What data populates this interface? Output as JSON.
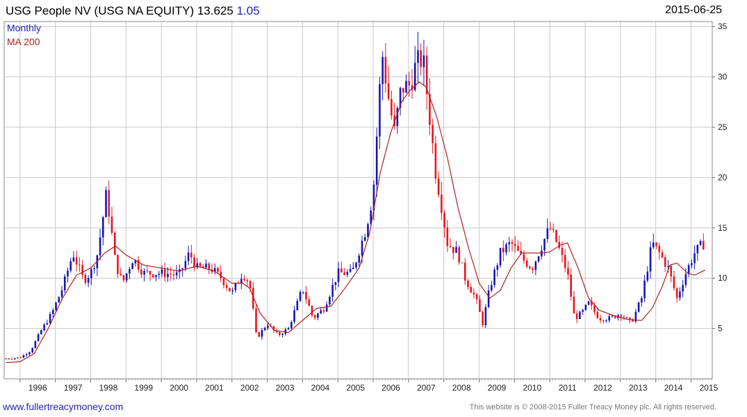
{
  "header": {
    "title": "USG People NV (USG NA EQUITY) 13.625",
    "change": "1.05",
    "date": "2015-06-25"
  },
  "footer": {
    "site": "www.fullertreacymoney.com",
    "copyright": "This website is © 2008-2015 Fuller Treacy Money plc. All rights reserved."
  },
  "colors": {
    "up": "#1515b5",
    "down": "#e8141e",
    "ma": "#b02020",
    "grid": "#c8c8c8",
    "label_monthly": "#2222aa",
    "label_ma": "#b02020"
  },
  "chart_data": {
    "type": "candlestick",
    "frequency": "Monthly",
    "moving_average_label": "MA 200",
    "legend": [
      "Monthly",
      "MA 200"
    ],
    "legend_position": "top-left",
    "y_axis_side": "right",
    "ylim": [
      0,
      35.5
    ],
    "yticks": [
      5,
      10,
      15,
      20,
      25,
      30,
      35
    ],
    "xlim": [
      1995.55,
      2015.6
    ],
    "xticks": [
      "1996",
      "1997",
      "1998",
      "1999",
      "2000",
      "2001",
      "2002",
      "2003",
      "2004",
      "2005",
      "2006",
      "2007",
      "2008",
      "2009",
      "2010",
      "2011",
      "2012",
      "2013",
      "2014",
      "2015"
    ],
    "grid": true,
    "anchor_closes": [
      [
        1995.6,
        2.0
      ],
      [
        1996.0,
        2.1
      ],
      [
        1996.3,
        2.8
      ],
      [
        1996.6,
        4.8
      ],
      [
        1996.9,
        6.5
      ],
      [
        1997.2,
        9.0
      ],
      [
        1997.5,
        12.5
      ],
      [
        1997.8,
        9.8
      ],
      [
        1998.0,
        10.5
      ],
      [
        1998.2,
        12.5
      ],
      [
        1998.45,
        18.5
      ],
      [
        1998.7,
        11.5
      ],
      [
        1998.9,
        9.5
      ],
      [
        1999.2,
        12.0
      ],
      [
        1999.5,
        10.5
      ],
      [
        2000.0,
        10.5
      ],
      [
        2000.5,
        10.3
      ],
      [
        2000.8,
        12.5
      ],
      [
        2001.0,
        11.0
      ],
      [
        2001.4,
        11.0
      ],
      [
        2001.7,
        10.0
      ],
      [
        2002.0,
        8.5
      ],
      [
        2002.3,
        10.5
      ],
      [
        2002.5,
        9.5
      ],
      [
        2002.7,
        4.0
      ],
      [
        2003.0,
        5.5
      ],
      [
        2003.3,
        4.3
      ],
      [
        2003.6,
        5.0
      ],
      [
        2004.0,
        9.0
      ],
      [
        2004.3,
        6.0
      ],
      [
        2004.6,
        7.0
      ],
      [
        2005.0,
        10.5
      ],
      [
        2005.4,
        10.5
      ],
      [
        2005.8,
        15.0
      ],
      [
        2006.0,
        18.5
      ],
      [
        2006.15,
        27.0
      ],
      [
        2006.25,
        32.5
      ],
      [
        2006.45,
        27.5
      ],
      [
        2006.6,
        24.5
      ],
      [
        2006.8,
        29.0
      ],
      [
        2007.0,
        29.0
      ],
      [
        2007.2,
        31.0
      ],
      [
        2007.4,
        32.0
      ],
      [
        2007.6,
        26.0
      ],
      [
        2007.75,
        21.0
      ],
      [
        2007.9,
        18.0
      ],
      [
        2008.1,
        13.5
      ],
      [
        2008.4,
        12.5
      ],
      [
        2008.6,
        10.0
      ],
      [
        2008.9,
        8.0
      ],
      [
        2009.1,
        5.5
      ],
      [
        2009.3,
        9.0
      ],
      [
        2009.6,
        12.5
      ],
      [
        2009.9,
        13.5
      ],
      [
        2010.2,
        12.0
      ],
      [
        2010.5,
        11.0
      ],
      [
        2010.8,
        13.5
      ],
      [
        2011.0,
        15.0
      ],
      [
        2011.2,
        13.5
      ],
      [
        2011.5,
        10.5
      ],
      [
        2011.7,
        6.0
      ],
      [
        2011.9,
        6.5
      ],
      [
        2012.1,
        7.5
      ],
      [
        2012.4,
        6.0
      ],
      [
        2012.7,
        6.0
      ],
      [
        2013.0,
        6.5
      ],
      [
        2013.3,
        5.5
      ],
      [
        2013.6,
        8.0
      ],
      [
        2013.9,
        13.5
      ],
      [
        2014.1,
        12.5
      ],
      [
        2014.35,
        11.0
      ],
      [
        2014.6,
        8.0
      ],
      [
        2014.85,
        10.5
      ],
      [
        2015.1,
        12.5
      ],
      [
        2015.4,
        13.625
      ]
    ],
    "ma_path": [
      [
        1995.6,
        1.6
      ],
      [
        1996.0,
        1.7
      ],
      [
        1996.4,
        2.5
      ],
      [
        1996.8,
        5.0
      ],
      [
        1997.2,
        8.0
      ],
      [
        1997.6,
        10.3
      ],
      [
        1998.0,
        11.0
      ],
      [
        1998.4,
        12.5
      ],
      [
        1998.7,
        13.2
      ],
      [
        1999.0,
        12.3
      ],
      [
        1999.5,
        11.3
      ],
      [
        2000.0,
        11.0
      ],
      [
        2000.5,
        10.7
      ],
      [
        2001.0,
        11.2
      ],
      [
        2001.5,
        10.7
      ],
      [
        2002.0,
        9.5
      ],
      [
        2002.3,
        9.5
      ],
      [
        2002.5,
        9.0
      ],
      [
        2002.8,
        6.5
      ],
      [
        2003.2,
        4.8
      ],
      [
        2003.6,
        4.6
      ],
      [
        2004.0,
        5.8
      ],
      [
        2004.4,
        7.0
      ],
      [
        2004.8,
        7.2
      ],
      [
        2005.2,
        9.0
      ],
      [
        2005.6,
        11.0
      ],
      [
        2005.9,
        14.5
      ],
      [
        2006.2,
        20.5
      ],
      [
        2006.5,
        24.5
      ],
      [
        2006.8,
        27.5
      ],
      [
        2007.0,
        28.5
      ],
      [
        2007.3,
        29.5
      ],
      [
        2007.5,
        29.0
      ],
      [
        2007.8,
        26.0
      ],
      [
        2008.1,
        22.0
      ],
      [
        2008.4,
        17.0
      ],
      [
        2008.7,
        13.0
      ],
      [
        2009.0,
        9.5
      ],
      [
        2009.3,
        8.0
      ],
      [
        2009.6,
        8.8
      ],
      [
        2009.9,
        11.0
      ],
      [
        2010.2,
        12.5
      ],
      [
        2010.5,
        12.5
      ],
      [
        2010.8,
        12.5
      ],
      [
        2011.0,
        12.6
      ],
      [
        2011.3,
        13.3
      ],
      [
        2011.5,
        13.5
      ],
      [
        2011.8,
        11.0
      ],
      [
        2012.1,
        8.0
      ],
      [
        2012.4,
        6.8
      ],
      [
        2012.8,
        6.3
      ],
      [
        2013.2,
        5.9
      ],
      [
        2013.6,
        5.8
      ],
      [
        2013.9,
        7.0
      ],
      [
        2014.2,
        9.3
      ],
      [
        2014.4,
        11.3
      ],
      [
        2014.6,
        11.5
      ],
      [
        2014.9,
        10.5
      ],
      [
        2015.1,
        10.3
      ],
      [
        2015.4,
        10.8
      ]
    ]
  }
}
